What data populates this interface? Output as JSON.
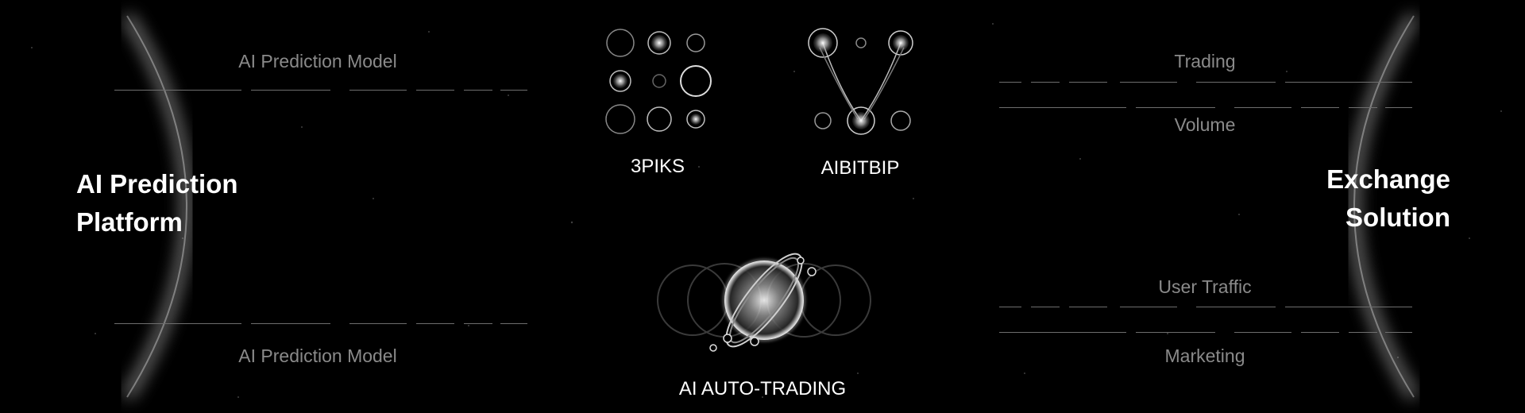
{
  "left": {
    "title_line1": "AI Prediction",
    "title_line2": "Platform",
    "top_label": "AI Prediction Model",
    "bottom_label": "AI Prediction Model"
  },
  "right": {
    "title_line1": "Exchange",
    "title_line2": "Solution",
    "labels": [
      "Trading",
      "Volume",
      "User Traffic",
      "Marketing"
    ]
  },
  "center": {
    "nodes": [
      {
        "label": "3PIKS",
        "icon": "dot-grid-icon"
      },
      {
        "label": "AIBITBIP",
        "icon": "v-network-icon"
      },
      {
        "label": "AI AUTO-TRADING",
        "icon": "planet-icon"
      }
    ]
  }
}
